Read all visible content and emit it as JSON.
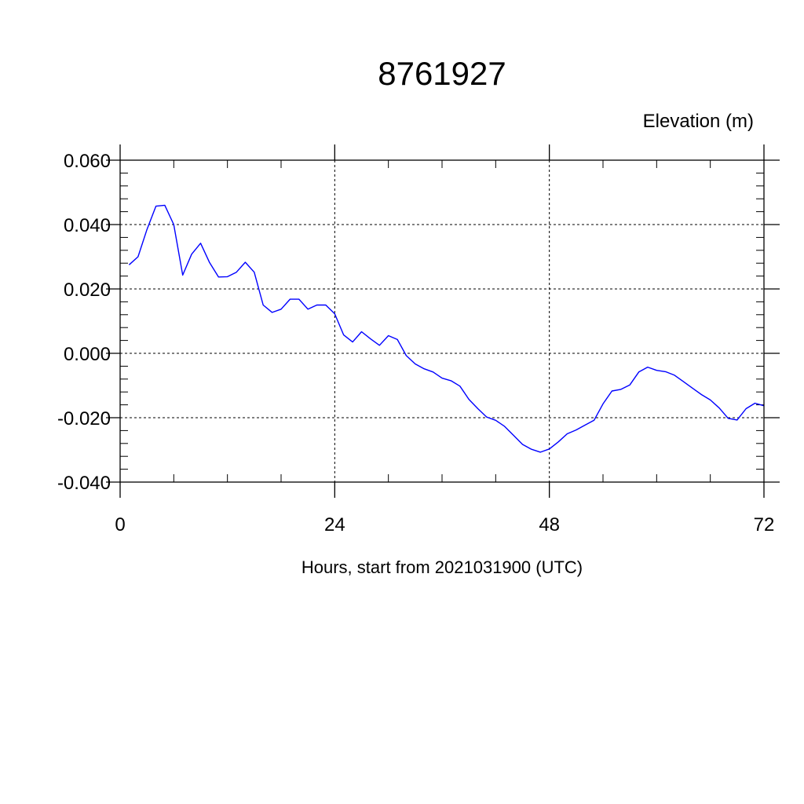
{
  "chart_data": {
    "type": "line",
    "title": "8761927",
    "ylabel": "Elevation (m)",
    "xlabel": "Hours, start from 2021031900 (UTC)",
    "xlim": [
      0,
      72
    ],
    "ylim": [
      -0.04,
      0.06
    ],
    "x_ticks": [
      0,
      24,
      48,
      72
    ],
    "x_tick_labels": [
      "0",
      "24",
      "48",
      "72"
    ],
    "y_ticks": [
      -0.04,
      -0.02,
      0.0,
      0.02,
      0.04,
      0.06
    ],
    "y_tick_labels": [
      "-0.040",
      "-0.020",
      "0.000",
      "0.020",
      "0.040",
      "0.060"
    ],
    "grid": "dashed",
    "line_color": "#0000ff",
    "series": [
      {
        "x": [
          1,
          2,
          3,
          4,
          5,
          6,
          7,
          8,
          9,
          10,
          11,
          12,
          13,
          14,
          15,
          16,
          17,
          18,
          19,
          20,
          21,
          22,
          23,
          24,
          25,
          26,
          27,
          28,
          29,
          30,
          31,
          32,
          33,
          34,
          35,
          36,
          37,
          38,
          39,
          40,
          41,
          42,
          43,
          44,
          45,
          46,
          47,
          48,
          49,
          50,
          51,
          52,
          53,
          54,
          55,
          56,
          57,
          58,
          59,
          60,
          61,
          62,
          63,
          64,
          65,
          66,
          67,
          68,
          69,
          70,
          71,
          72
        ],
        "values": [
          0.0275,
          0.03,
          0.0385,
          0.0457,
          0.046,
          0.04,
          0.0243,
          0.0308,
          0.0342,
          0.0282,
          0.0237,
          0.0238,
          0.0252,
          0.0283,
          0.0252,
          0.015,
          0.0127,
          0.0137,
          0.0168,
          0.0168,
          0.0137,
          0.015,
          0.015,
          0.0123,
          0.0057,
          0.0035,
          0.0067,
          0.0045,
          0.0025,
          0.0055,
          0.0043,
          -0.0007,
          -0.0033,
          -0.0048,
          -0.0058,
          -0.0077,
          -0.0085,
          -0.0102,
          -0.0143,
          -0.0172,
          -0.0198,
          -0.0208,
          -0.0227,
          -0.0255,
          -0.0283,
          -0.0298,
          -0.0307,
          -0.0297,
          -0.0275,
          -0.025,
          -0.0238,
          -0.0223,
          -0.0208,
          -0.0157,
          -0.0117,
          -0.0112,
          -0.0098,
          -0.0058,
          -0.0043,
          -0.0053,
          -0.0057,
          -0.0068,
          -0.0088,
          -0.0108,
          -0.0128,
          -0.0145,
          -0.017,
          -0.0202,
          -0.0207,
          -0.0172,
          -0.0155,
          -0.0163
        ]
      }
    ]
  }
}
